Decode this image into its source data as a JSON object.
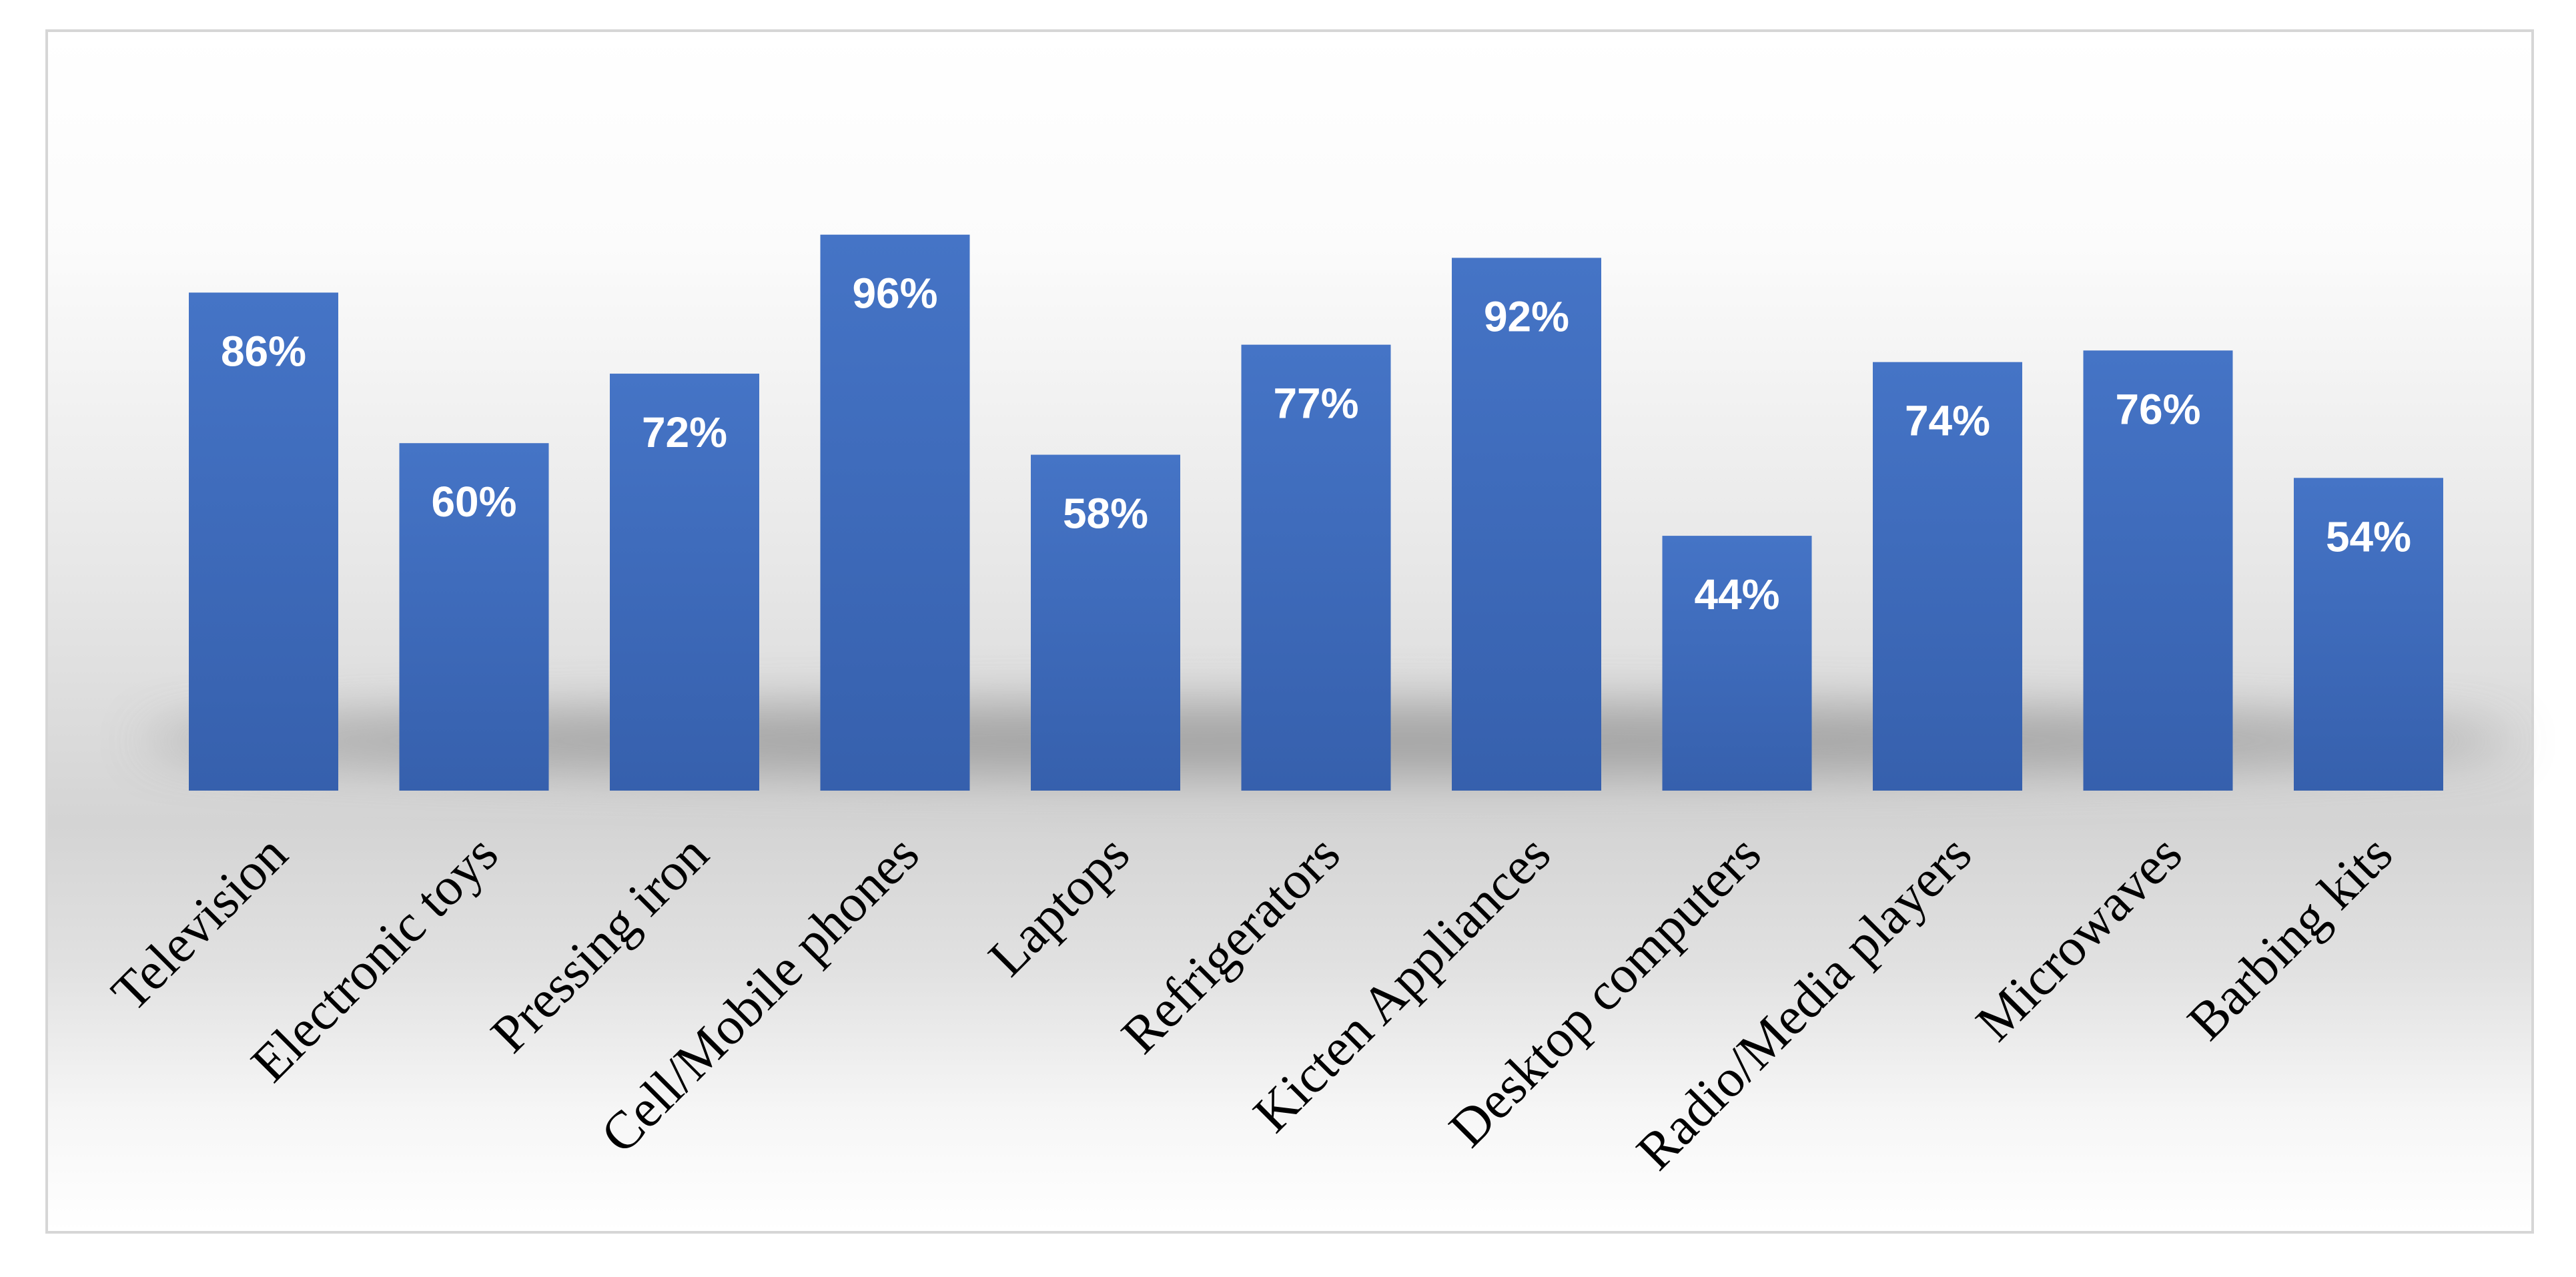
{
  "chart_data": {
    "type": "bar",
    "categories": [
      "Television",
      "Electronic toys",
      "Pressing iron",
      "Cell/Mobile phones",
      "Laptops",
      "Refrigerators",
      "Kicten Appliances",
      "Desktop computers",
      "Radio/Media players",
      "Microwaves",
      "Barbing kits"
    ],
    "values": [
      86,
      60,
      72,
      96,
      58,
      77,
      92,
      44,
      74,
      76,
      54
    ],
    "data_labels": [
      "86%",
      "60%",
      "72%",
      "96%",
      "58%",
      "77%",
      "92%",
      "44%",
      "74%",
      "76%",
      "54%"
    ],
    "ylim": [
      0,
      100
    ],
    "grid": false,
    "legend": "none",
    "bar_color": "#4472C4"
  }
}
